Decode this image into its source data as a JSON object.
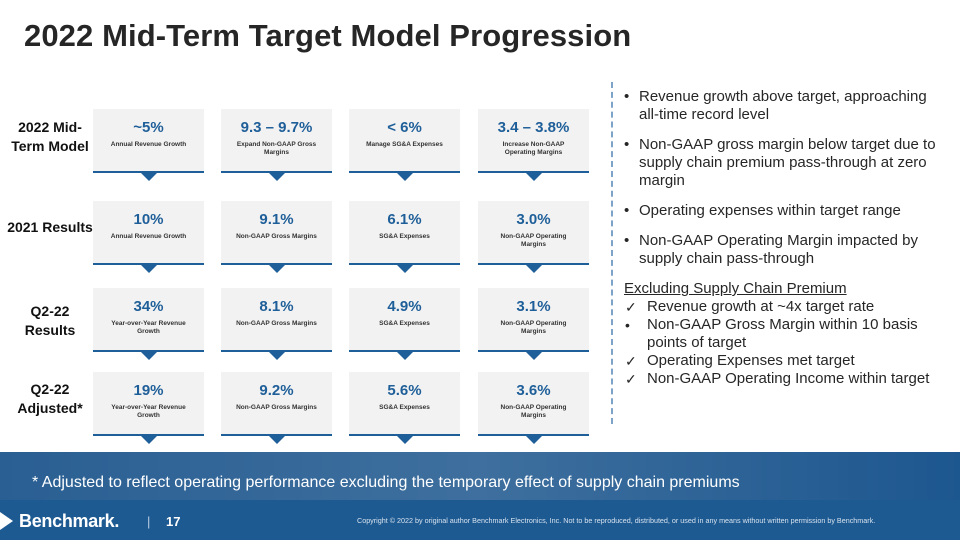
{
  "slide": {
    "title": "2022 Mid-Term Target Model Progression",
    "row_labels": [
      "2022 Mid-Term Model",
      "2021 Results",
      "Q2-22 Results",
      "Q2-22 Adjusted*"
    ],
    "rows": [
      [
        {
          "value": "~5%",
          "label": "Annual Revenue Growth"
        },
        {
          "value": "9.3 – 9.7%",
          "label": "Expand Non-GAAP Gross Margins"
        },
        {
          "value": "< 6%",
          "label": "Manage SG&A Expenses"
        },
        {
          "value": "3.4 – 3.8%",
          "label": "Increase Non-GAAP Operating Margins"
        }
      ],
      [
        {
          "value": "10%",
          "label": "Annual Revenue Growth"
        },
        {
          "value": "9.1%",
          "label": "Non-GAAP Gross Margins"
        },
        {
          "value": "6.1%",
          "label": "SG&A Expenses"
        },
        {
          "value": "3.0%",
          "label": "Non-GAAP Operating Margins"
        }
      ],
      [
        {
          "value": "34%",
          "label": "Year-over-Year Revenue Growth"
        },
        {
          "value": "8.1%",
          "label": "Non-GAAP Gross Margins"
        },
        {
          "value": "4.9%",
          "label": "SG&A Expenses"
        },
        {
          "value": "3.1%",
          "label": "Non-GAAP Operating Margins"
        }
      ],
      [
        {
          "value": "19%",
          "label": "Year-over-Year Revenue Growth"
        },
        {
          "value": "9.2%",
          "label": "Non-GAAP Gross Margins"
        },
        {
          "value": "5.6%",
          "label": "SG&A Expenses"
        },
        {
          "value": "3.6%",
          "label": "Non-GAAP Operating Margins"
        }
      ]
    ],
    "bullets": [
      "Revenue growth above target, approaching all-time record level",
      "Non-GAAP gross margin below target due to supply chain premium pass-through at zero margin",
      "Operating expenses within target range",
      "Non-GAAP Operating Margin impacted by supply chain pass-through"
    ],
    "bullet_symbol": "•",
    "excluding": {
      "title": "Excluding Supply Chain Premium",
      "items": [
        {
          "mark": "✓",
          "text": "Revenue growth at ~4x target rate"
        },
        {
          "mark": "•",
          "text": "Non-GAAP Gross Margin within 10 basis points of target"
        },
        {
          "mark": "✓",
          "text": "Operating Expenses met target"
        },
        {
          "mark": "✓",
          "text": "Non-GAAP Operating Income within target"
        }
      ]
    },
    "footnote": "* Adjusted to reflect operating performance excluding the temporary effect of supply chain premiums"
  },
  "footer": {
    "brand": "Benchmark",
    "brand_dot": ".",
    "separator": "|",
    "page_number": "17",
    "copyright": "Copyright © 2022 by original author Benchmark Electronics, Inc. Not to be reproduced, distributed, or used in any means without written permission by Benchmark.",
    "logo_icon": "chevron-right-icon"
  },
  "colors": {
    "accent_blue": "#1f5f99",
    "card_bg": "#f2f2f2",
    "footer_blue": "#1e5a92"
  }
}
